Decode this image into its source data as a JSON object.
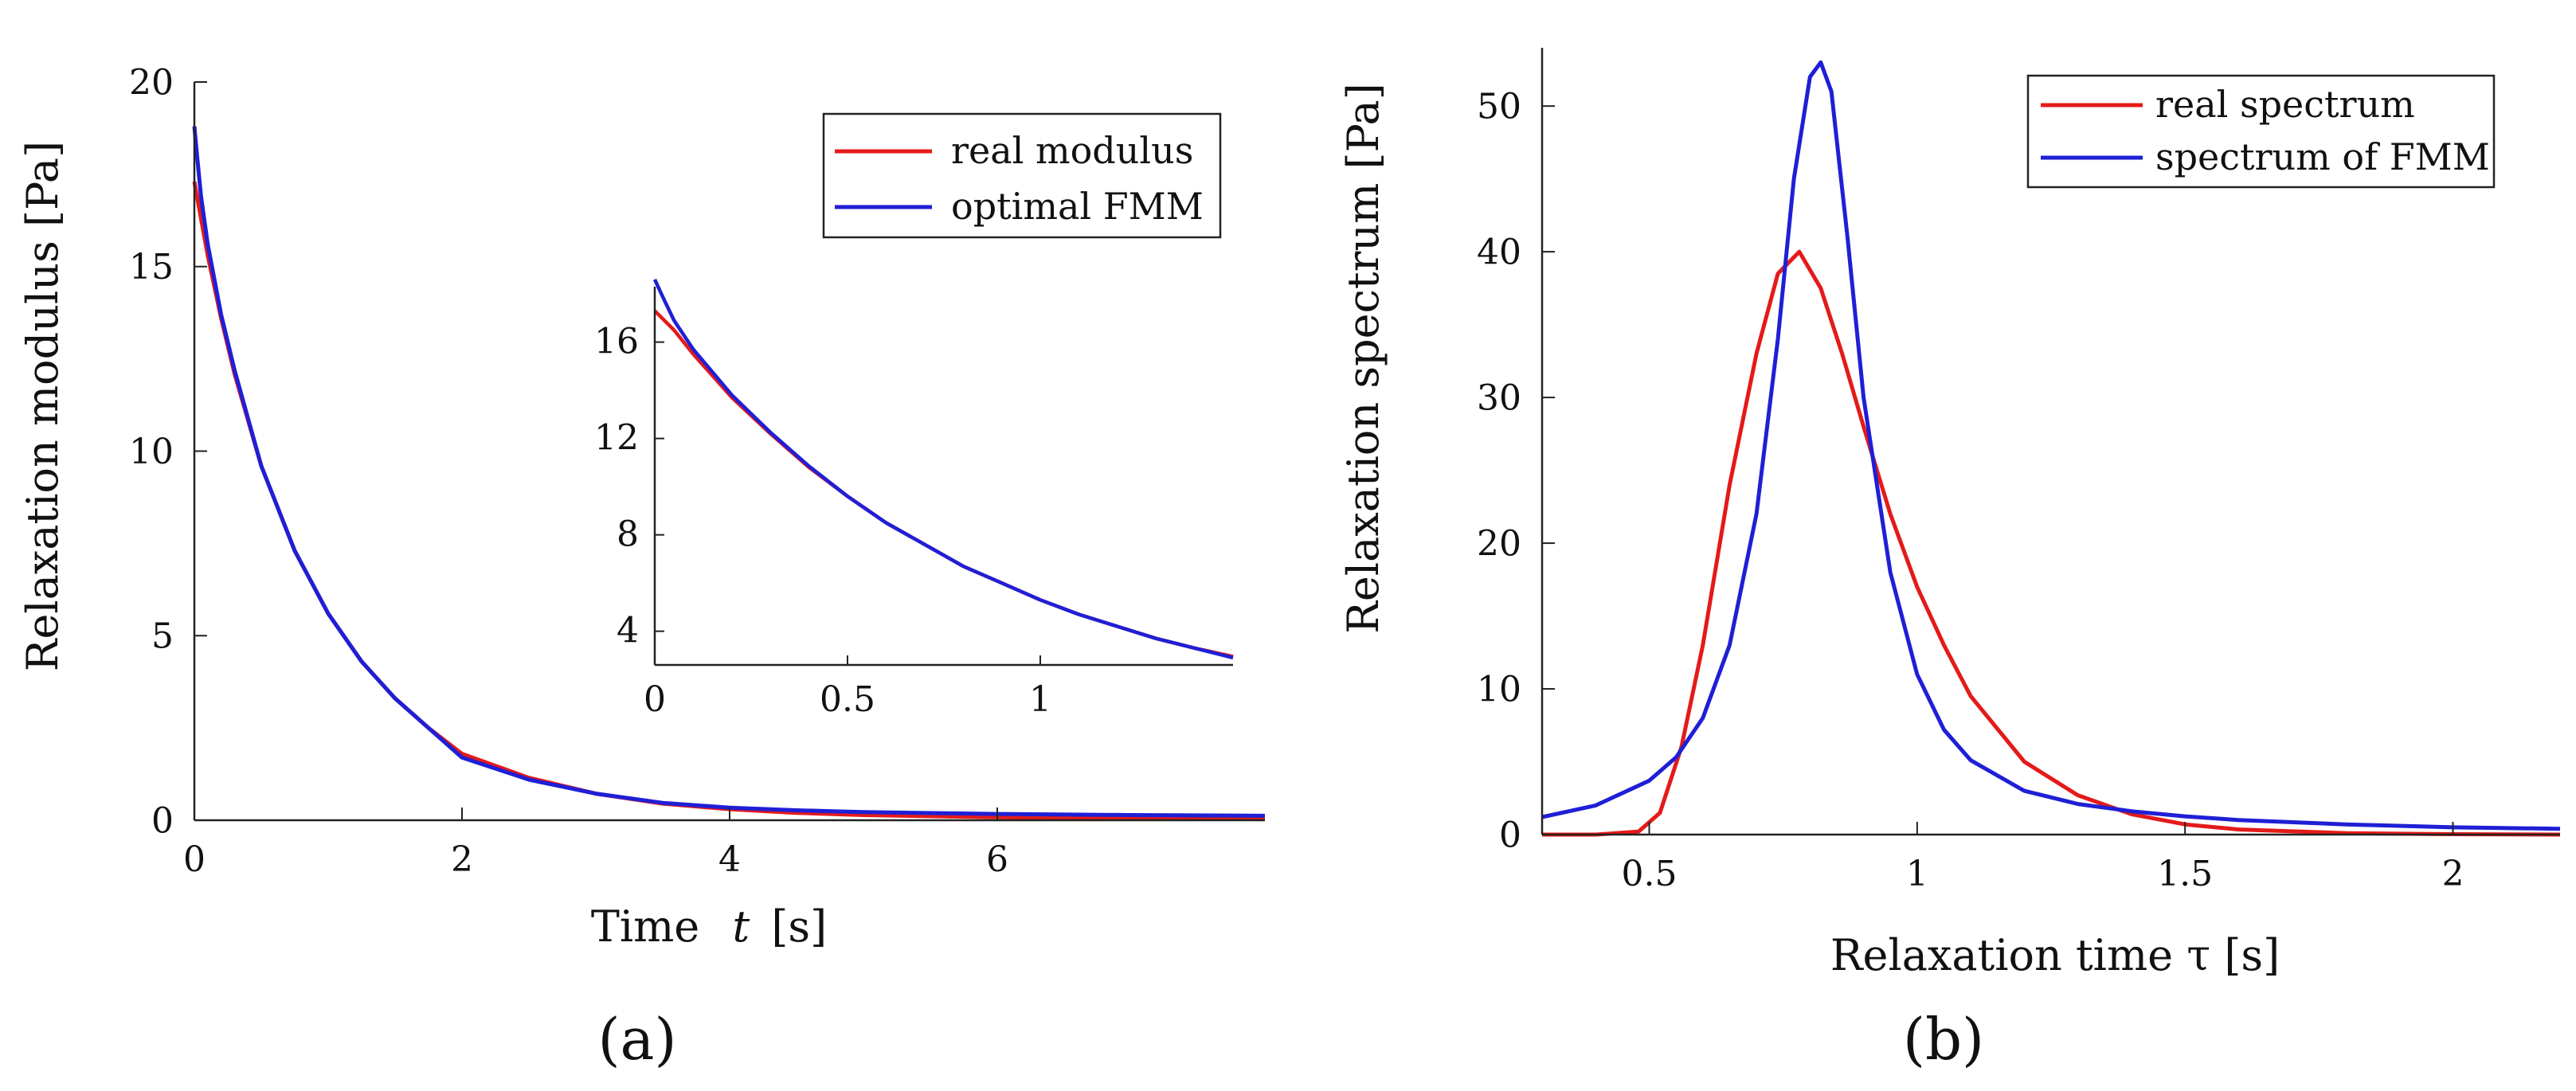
{
  "colors": {
    "real": "#e41a1a",
    "fmm": "#1f1fd6",
    "axis": "#222222",
    "background": "#ffffff"
  },
  "chart_data": [
    {
      "type": "line",
      "panel_label": "(a)",
      "xlabel_prefix": "Time",
      "xlabel_var": "t",
      "xlabel_unit": "[s]",
      "ylabel": "Relaxation modulus  [Pa]",
      "xlim": [
        0,
        8
      ],
      "ylim": [
        0,
        20
      ],
      "xticks": [
        0,
        2,
        4,
        6
      ],
      "yticks": [
        0,
        5,
        10,
        15,
        20
      ],
      "grid": false,
      "legend_position": "top-right",
      "series": [
        {
          "name": "real modulus",
          "color": "#e41a1a",
          "x": [
            0,
            0.1,
            0.2,
            0.3,
            0.5,
            0.75,
            1.0,
            1.25,
            1.5,
            1.75,
            2.0,
            2.5,
            3.0,
            3.5,
            4.0,
            4.5,
            5.0,
            6.0,
            7.0,
            8.0
          ],
          "y": [
            17.3,
            15.3,
            13.6,
            12.1,
            9.6,
            7.3,
            5.6,
            4.3,
            3.3,
            2.5,
            1.8,
            1.15,
            0.72,
            0.45,
            0.3,
            0.2,
            0.14,
            0.08,
            0.05,
            0.03
          ]
        },
        {
          "name": "optimal FMM",
          "color": "#1f1fd6",
          "x": [
            0,
            0.02,
            0.05,
            0.1,
            0.2,
            0.3,
            0.5,
            0.75,
            1.0,
            1.25,
            1.5,
            1.75,
            2.0,
            2.5,
            3.0,
            3.5,
            4.0,
            4.5,
            5.0,
            6.0,
            7.0,
            8.0
          ],
          "y": [
            18.8,
            18.0,
            16.9,
            15.6,
            13.7,
            12.2,
            9.6,
            7.3,
            5.6,
            4.3,
            3.3,
            2.5,
            1.7,
            1.1,
            0.72,
            0.47,
            0.34,
            0.27,
            0.22,
            0.17,
            0.14,
            0.12
          ]
        }
      ],
      "inset": {
        "xlim": [
          0,
          1.5
        ],
        "ylim": [
          2.6,
          18.3
        ],
        "xticks": [
          0,
          0.5,
          1
        ],
        "yticks": [
          4,
          8,
          12,
          16
        ],
        "series": [
          {
            "name": "real modulus",
            "color": "#e41a1a",
            "x": [
              0,
              0.05,
              0.1,
              0.2,
              0.3,
              0.4,
              0.5,
              0.6,
              0.7,
              0.8,
              0.9,
              1.0,
              1.1,
              1.2,
              1.3,
              1.4,
              1.5
            ],
            "y": [
              17.3,
              16.5,
              15.5,
              13.7,
              12.2,
              10.8,
              9.6,
              8.5,
              7.6,
              6.7,
              6.0,
              5.3,
              4.7,
              4.2,
              3.7,
              3.3,
              2.95
            ]
          },
          {
            "name": "optimal FMM",
            "color": "#1f1fd6",
            "x": [
              0,
              0.02,
              0.05,
              0.1,
              0.2,
              0.3,
              0.4,
              0.5,
              0.6,
              0.7,
              0.8,
              0.9,
              1.0,
              1.1,
              1.2,
              1.3,
              1.4,
              1.5
            ],
            "y": [
              18.6,
              17.9,
              16.9,
              15.7,
              13.8,
              12.25,
              10.85,
              9.6,
              8.5,
              7.6,
              6.7,
              6.0,
              5.3,
              4.7,
              4.2,
              3.7,
              3.3,
              2.9
            ]
          }
        ]
      }
    },
    {
      "type": "line",
      "panel_label": "(b)",
      "xlabel": "Relaxation time τ  [s]",
      "ylabel": "Relaxation spectrum  [Pa]",
      "xlim": [
        0.3,
        2.2
      ],
      "ylim": [
        0,
        54
      ],
      "xticks": [
        0.5,
        1,
        1.5,
        2
      ],
      "yticks": [
        0,
        10,
        20,
        30,
        40,
        50
      ],
      "grid": false,
      "legend_position": "top-right",
      "series": [
        {
          "name": "real spectrum",
          "color": "#e41a1a",
          "x": [
            0.3,
            0.4,
            0.48,
            0.52,
            0.56,
            0.6,
            0.65,
            0.7,
            0.74,
            0.78,
            0.82,
            0.86,
            0.9,
            0.95,
            1.0,
            1.05,
            1.1,
            1.2,
            1.3,
            1.4,
            1.5,
            1.6,
            1.8,
            2.0,
            2.2
          ],
          "y": [
            0,
            0,
            0.2,
            1.5,
            6,
            13,
            24,
            33,
            38.5,
            40,
            37.5,
            33,
            28,
            22,
            17,
            13,
            9.5,
            5,
            2.7,
            1.4,
            0.7,
            0.35,
            0.1,
            0.03,
            0
          ]
        },
        {
          "name": "spectrum of FMM",
          "color": "#1f1fd6",
          "x": [
            0.3,
            0.4,
            0.5,
            0.55,
            0.6,
            0.65,
            0.7,
            0.74,
            0.77,
            0.8,
            0.82,
            0.84,
            0.87,
            0.9,
            0.95,
            1.0,
            1.05,
            1.1,
            1.2,
            1.3,
            1.4,
            1.5,
            1.6,
            1.8,
            2.0,
            2.2
          ],
          "y": [
            1.2,
            2.0,
            3.7,
            5.3,
            8.0,
            13,
            22,
            34,
            45,
            52,
            53,
            51,
            41,
            30,
            18,
            11,
            7.2,
            5.1,
            3.0,
            2.1,
            1.6,
            1.25,
            1.0,
            0.7,
            0.5,
            0.4
          ]
        }
      ]
    }
  ]
}
